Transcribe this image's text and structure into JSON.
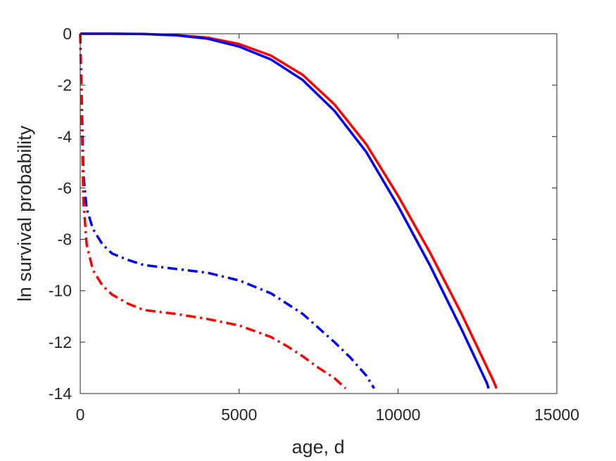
{
  "chart_data": {
    "type": "line",
    "title": "",
    "xlabel": "age, d",
    "ylabel": "ln survival probability",
    "xlim": [
      0,
      15000
    ],
    "ylim": [
      -14,
      0
    ],
    "xticks": [
      0,
      5000,
      10000,
      15000
    ],
    "yticks": [
      0,
      -2,
      -4,
      -6,
      -8,
      -10,
      -12,
      -14
    ],
    "grid": false,
    "legend": "none",
    "series": [
      {
        "color": "#ff0000",
        "style": "solid",
        "x": [
          0,
          1000,
          2000,
          3000,
          4000,
          5000,
          6000,
          7000,
          8000,
          9000,
          10000,
          11000,
          12000,
          13000,
          13100
        ],
        "y": [
          0,
          0,
          -0.01,
          -0.05,
          -0.15,
          -0.4,
          -0.85,
          -1.6,
          -2.75,
          -4.3,
          -6.3,
          -8.5,
          -10.9,
          -13.5,
          -13.8
        ]
      },
      {
        "color": "#0000ff",
        "style": "solid",
        "x": [
          0,
          1000,
          2000,
          3000,
          4000,
          5000,
          6000,
          7000,
          8000,
          9000,
          10000,
          11000,
          12000,
          12800,
          12850
        ],
        "y": [
          0,
          0,
          -0.01,
          -0.06,
          -0.19,
          -0.5,
          -1.0,
          -1.8,
          -3.0,
          -4.6,
          -6.7,
          -9.0,
          -11.5,
          -13.6,
          -13.8
        ]
      },
      {
        "color": "#0000ff",
        "style": "dashdot",
        "x": [
          0,
          50,
          100,
          200,
          400,
          700,
          1000,
          1500,
          2000,
          3000,
          4000,
          5000,
          6000,
          7000,
          8000,
          8500,
          9000,
          9250
        ],
        "y": [
          0,
          -2.8,
          -5.5,
          -6.8,
          -7.6,
          -8.2,
          -8.55,
          -8.8,
          -9.0,
          -9.15,
          -9.3,
          -9.6,
          -10.1,
          -10.9,
          -12.0,
          -12.6,
          -13.3,
          -13.8
        ]
      },
      {
        "color": "#ff0000",
        "style": "dashdot",
        "x": [
          0,
          50,
          100,
          200,
          400,
          700,
          1000,
          1500,
          2000,
          3000,
          4000,
          5000,
          6000,
          6500,
          7000,
          7500,
          8000,
          8350
        ],
        "y": [
          0,
          -3.5,
          -6.5,
          -8.2,
          -9.2,
          -9.8,
          -10.15,
          -10.5,
          -10.75,
          -10.9,
          -11.1,
          -11.35,
          -11.8,
          -12.15,
          -12.55,
          -13.0,
          -13.4,
          -13.8
        ]
      }
    ]
  }
}
